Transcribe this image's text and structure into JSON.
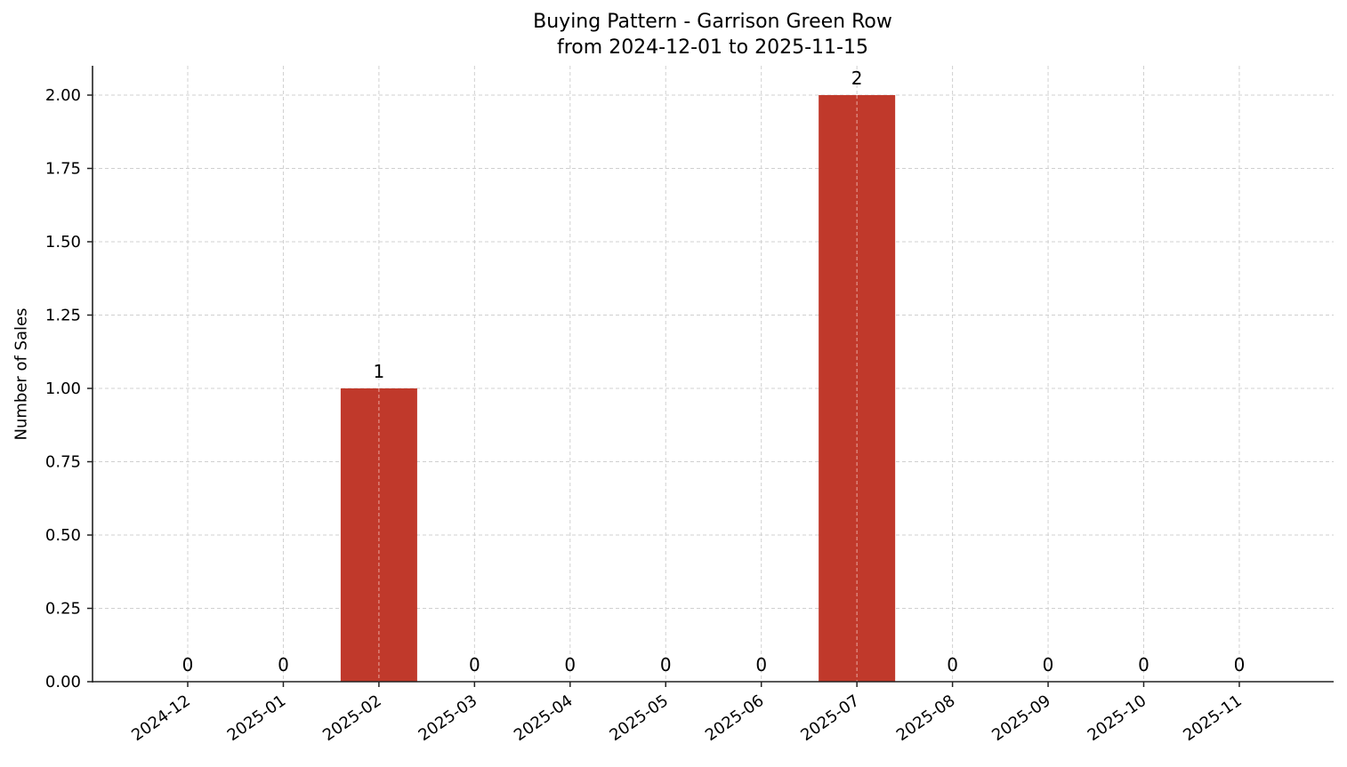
{
  "chart_data": {
    "type": "bar",
    "title": "Buying Pattern - Garrison Green Row",
    "subtitle": "from 2024-12-01 to 2025-11-15",
    "xlabel": "",
    "ylabel": "Number of Sales",
    "categories": [
      "2024-12",
      "2025-01",
      "2025-02",
      "2025-03",
      "2025-04",
      "2025-05",
      "2025-06",
      "2025-07",
      "2025-08",
      "2025-09",
      "2025-10",
      "2025-11"
    ],
    "values": [
      0,
      0,
      1,
      0,
      0,
      0,
      0,
      2,
      0,
      0,
      0,
      0
    ],
    "data_labels": [
      "0",
      "0",
      "1",
      "0",
      "0",
      "0",
      "0",
      "2",
      "0",
      "0",
      "0",
      "0"
    ],
    "ylim": [
      0,
      2.1
    ],
    "yticks": [
      "0.00",
      "0.25",
      "0.50",
      "0.75",
      "1.00",
      "1.25",
      "1.50",
      "1.75",
      "2.00"
    ],
    "grid": true,
    "legend": null,
    "bar_color": "#c0392b"
  },
  "header": {
    "title_line1": "Buying Pattern - Garrison Green Row",
    "title_line2": "from 2024-12-01 to 2025-11-15"
  },
  "axes": {
    "ylabel": "Number of Sales"
  }
}
